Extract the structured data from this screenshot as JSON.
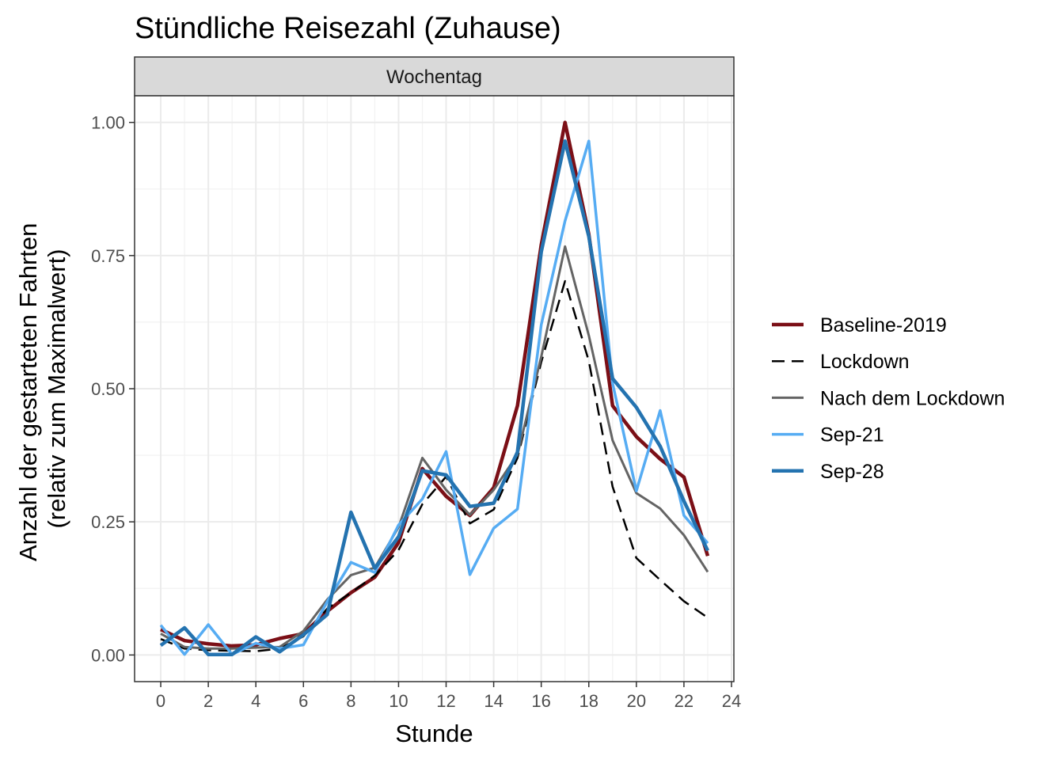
{
  "chart_data": {
    "type": "line",
    "title": "Stündliche Reisezahl (Zuhause)",
    "facet": "Wochentag",
    "xlabel": "Stunde",
    "ylabel": [
      "Anzahl der gestarteten Fahrten",
      "(relativ zum Maximalwert)"
    ],
    "xlim": [
      -1.1,
      24.1
    ],
    "ylim": [
      -0.05,
      1.05
    ],
    "x_ticks": [
      0,
      2,
      4,
      6,
      8,
      10,
      12,
      14,
      16,
      18,
      20,
      22,
      24
    ],
    "y_ticks": [
      0.0,
      0.25,
      0.5,
      0.75,
      1.0
    ],
    "y_tick_labels": [
      "0.00",
      "0.25",
      "0.50",
      "0.75",
      "1.00"
    ],
    "grid": true,
    "legend_position": "right",
    "x": [
      0,
      1,
      2,
      3,
      4,
      5,
      6,
      7,
      8,
      9,
      10,
      11,
      12,
      13,
      14,
      15,
      16,
      17,
      18,
      19,
      20,
      21,
      22,
      23
    ],
    "series": [
      {
        "name": "Baseline-2019",
        "color": "#7b0f16",
        "dash": "solid",
        "width": 4.5,
        "values": [
          0.048,
          0.027,
          0.021,
          0.017,
          0.019,
          0.031,
          0.04,
          0.082,
          0.117,
          0.146,
          0.211,
          0.35,
          0.298,
          0.262,
          0.314,
          0.468,
          0.77,
          1.0,
          0.79,
          0.468,
          0.41,
          0.368,
          0.334,
          0.186
        ]
      },
      {
        "name": "Lockdown",
        "color": "#000000",
        "dash": "dashed",
        "width": 2.5,
        "values": [
          0.03,
          0.012,
          0.009,
          0.008,
          0.007,
          0.012,
          0.035,
          0.087,
          0.117,
          0.149,
          0.197,
          0.283,
          0.335,
          0.247,
          0.273,
          0.37,
          0.55,
          0.702,
          0.552,
          0.316,
          0.182,
          0.141,
          0.101,
          0.07
        ]
      },
      {
        "name": "Nach dem Lockdown",
        "color": "#646464",
        "dash": "solid",
        "width": 3,
        "values": [
          0.04,
          0.015,
          0.012,
          0.012,
          0.014,
          0.015,
          0.045,
          0.104,
          0.15,
          0.164,
          0.24,
          0.37,
          0.31,
          0.263,
          0.31,
          0.376,
          0.56,
          0.767,
          0.6,
          0.403,
          0.304,
          0.275,
          0.225,
          0.156
        ]
      },
      {
        "name": "Sep-21",
        "color": "#56acf3",
        "dash": "solid",
        "width": 3.5,
        "values": [
          0.056,
          0.001,
          0.057,
          0.001,
          0.022,
          0.012,
          0.019,
          0.1,
          0.174,
          0.155,
          0.244,
          0.293,
          0.382,
          0.151,
          0.238,
          0.274,
          0.62,
          0.815,
          0.965,
          0.51,
          0.308,
          0.459,
          0.262,
          0.21
        ]
      },
      {
        "name": "Sep-28",
        "color": "#2473b0",
        "dash": "solid",
        "width": 4.5,
        "values": [
          0.018,
          0.051,
          0.001,
          0.001,
          0.034,
          0.006,
          0.038,
          0.076,
          0.268,
          0.163,
          0.222,
          0.346,
          0.338,
          0.279,
          0.285,
          0.381,
          0.757,
          0.965,
          0.786,
          0.519,
          0.465,
          0.392,
          0.289,
          0.196
        ]
      }
    ]
  }
}
